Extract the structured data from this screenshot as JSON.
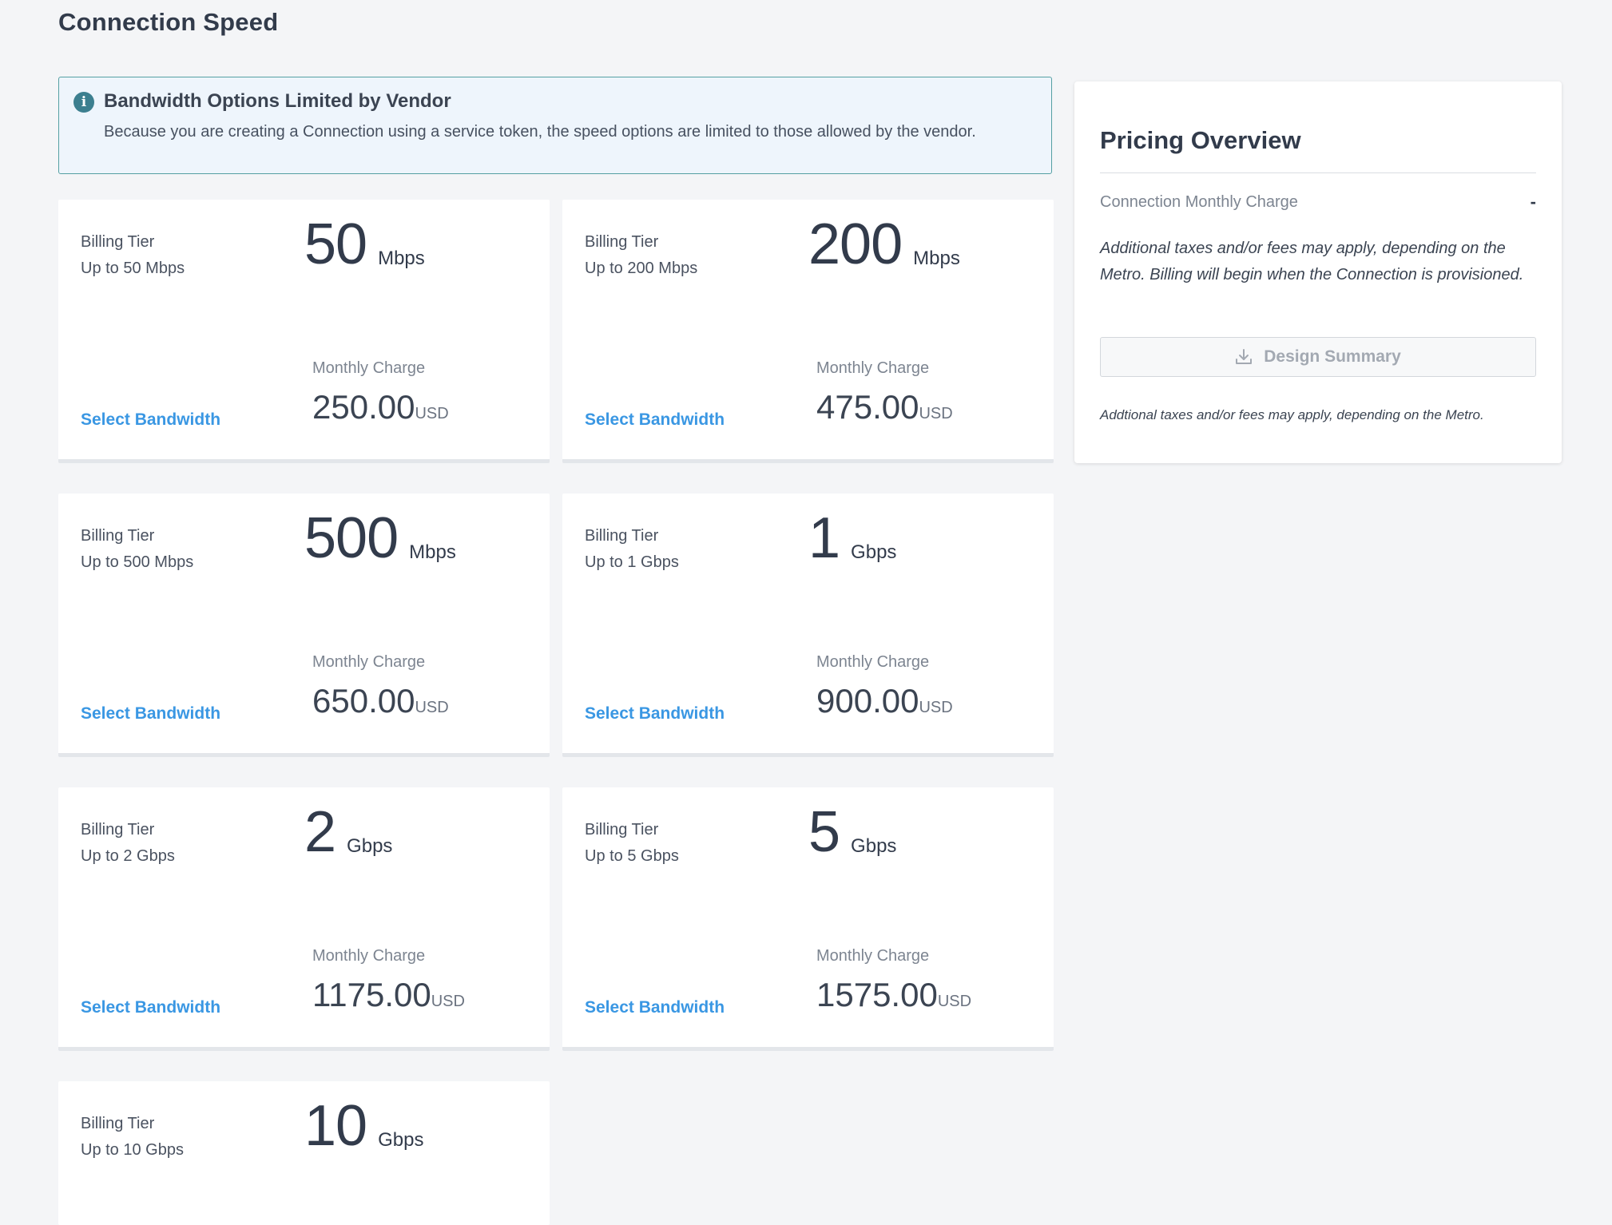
{
  "page_title": "Connection Speed",
  "alert": {
    "icon": "info-icon",
    "title": "Bandwidth Options Limited by Vendor",
    "text": "Because you are creating a Connection using a service token, the speed options are limited to those allowed by the vendor."
  },
  "cards": [
    {
      "tier_label": "Billing Tier",
      "tier_desc": "Up to 50 Mbps",
      "speed": "50",
      "unit": "Mbps",
      "charge_label": "Monthly Charge",
      "charge": "250.00",
      "currency": "USD",
      "select": "Select Bandwidth"
    },
    {
      "tier_label": "Billing Tier",
      "tier_desc": "Up to 200 Mbps",
      "speed": "200",
      "unit": "Mbps",
      "charge_label": "Monthly Charge",
      "charge": "475.00",
      "currency": "USD",
      "select": "Select Bandwidth"
    },
    {
      "tier_label": "Billing Tier",
      "tier_desc": "Up to 500 Mbps",
      "speed": "500",
      "unit": "Mbps",
      "charge_label": "Monthly Charge",
      "charge": "650.00",
      "currency": "USD",
      "select": "Select Bandwidth"
    },
    {
      "tier_label": "Billing Tier",
      "tier_desc": "Up to 1 Gbps",
      "speed": "1",
      "unit": "Gbps",
      "charge_label": "Monthly Charge",
      "charge": "900.00",
      "currency": "USD",
      "select": "Select Bandwidth"
    },
    {
      "tier_label": "Billing Tier",
      "tier_desc": "Up to 2 Gbps",
      "speed": "2",
      "unit": "Gbps",
      "charge_label": "Monthly Charge",
      "charge": "1175.00",
      "currency": "USD",
      "select": "Select Bandwidth"
    },
    {
      "tier_label": "Billing Tier",
      "tier_desc": "Up to 5 Gbps",
      "speed": "5",
      "unit": "Gbps",
      "charge_label": "Monthly Charge",
      "charge": "1575.00",
      "currency": "USD",
      "select": "Select Bandwidth"
    },
    {
      "tier_label": "Billing Tier",
      "tier_desc": "Up to 10 Gbps",
      "speed": "10",
      "unit": "Gbps"
    }
  ],
  "pricing": {
    "title": "Pricing Overview",
    "monthly_charge_label": "Connection Monthly Charge",
    "monthly_charge_value": "-",
    "note": "Additional taxes and/or fees may apply, depending on the Metro. Billing will begin when the Connection is provisioned.",
    "design_summary_label": "Design Summary",
    "design_summary_icon": "download-icon",
    "footnote": "Addtional taxes and/or fees may apply, depending on the Metro."
  }
}
